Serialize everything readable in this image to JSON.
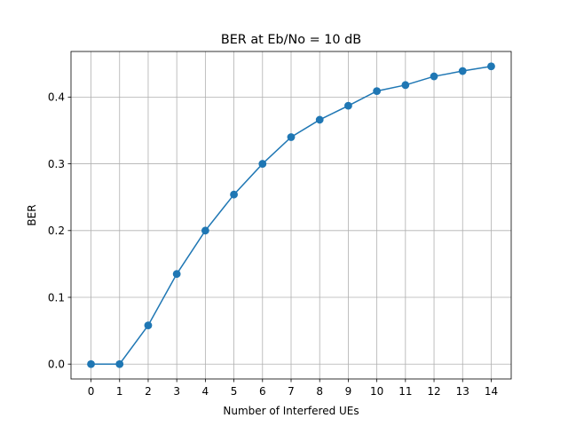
{
  "chart_data": {
    "type": "line",
    "title": "BER at Eb/No = 10 dB",
    "xlabel": "Number of Interfered UEs",
    "ylabel": "BER",
    "x": [
      0,
      1,
      2,
      3,
      4,
      5,
      6,
      7,
      8,
      9,
      10,
      11,
      12,
      13,
      14
    ],
    "series": [
      {
        "values": [
          0.0,
          0.0,
          0.058,
          0.135,
          0.2,
          0.254,
          0.3,
          0.34,
          0.366,
          0.387,
          0.409,
          0.418,
          0.431,
          0.439,
          0.446
        ],
        "color": "#1f77b4",
        "marker": "circle"
      }
    ],
    "xlim": [
      -0.7,
      14.7
    ],
    "ylim": [
      -0.0223,
      0.4683
    ],
    "x_ticks": [
      0,
      1,
      2,
      3,
      4,
      5,
      6,
      7,
      8,
      9,
      10,
      11,
      12,
      13,
      14
    ],
    "x_tick_labels": [
      "0",
      "1",
      "2",
      "3",
      "4",
      "5",
      "6",
      "7",
      "8",
      "9",
      "10",
      "11",
      "12",
      "13",
      "14"
    ],
    "y_ticks": [
      0.0,
      0.1,
      0.2,
      0.3,
      0.4
    ],
    "y_tick_labels": [
      "0.0",
      "0.1",
      "0.2",
      "0.3",
      "0.4"
    ],
    "grid": true,
    "legend": "none"
  }
}
